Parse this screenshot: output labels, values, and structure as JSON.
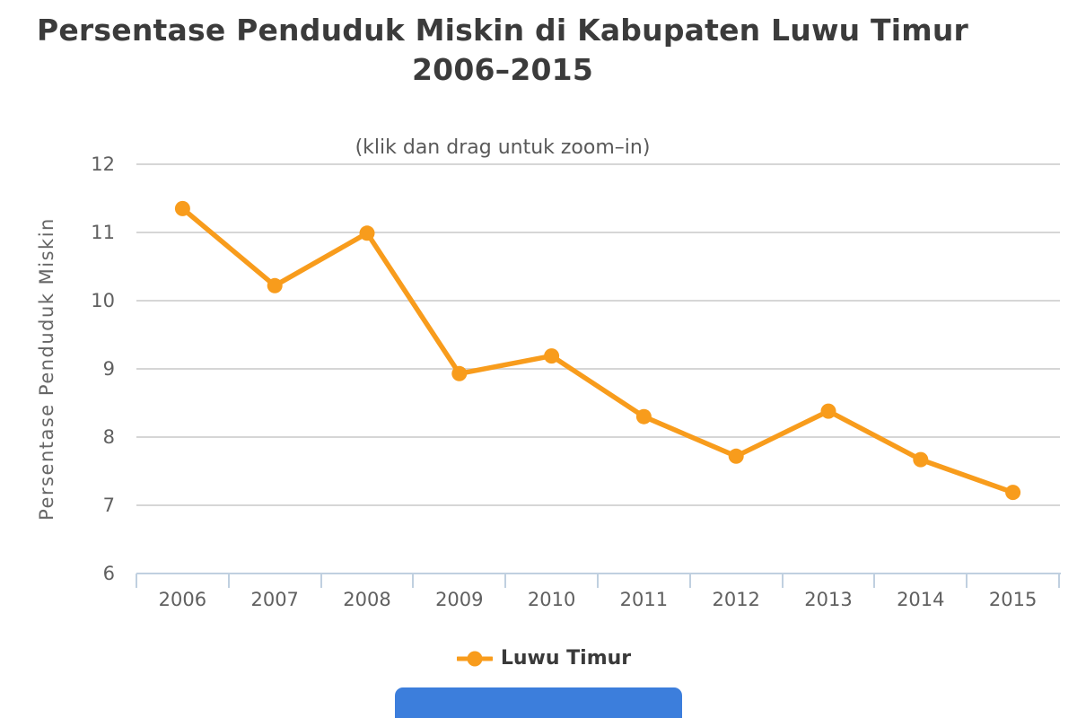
{
  "header": {
    "title_line1": "Persentase Penduduk Miskin di Kabupaten Luwu Timur",
    "title_line2": "2006–2015",
    "subtitle": "(klik dan drag untuk zoom–in)"
  },
  "y_axis": {
    "title": "Persentase Penduduk Miskin",
    "ticks": [
      12,
      11,
      10,
      9,
      8,
      7,
      6
    ],
    "min": 6,
    "max": 12
  },
  "x_axis": {
    "categories": [
      "2006",
      "2007",
      "2008",
      "2009",
      "2010",
      "2011",
      "2012",
      "2013",
      "2014",
      "2015"
    ]
  },
  "legend": {
    "label": "Luwu Timur"
  },
  "colors": {
    "series": "#F89C1C",
    "grid": "#D6D6D6",
    "axis_line": "#C0D0E0",
    "title_text": "#3B3B3B",
    "subtitle_text": "#595959",
    "axis_text": "#606060",
    "legend_text": "#3A3A3A",
    "scrollbar": "#3C7EDC"
  },
  "chart_data": {
    "type": "line",
    "title": "Persentase Penduduk Miskin di Kabupaten Luwu Timur 2006–2015",
    "subtitle": "(klik dan drag untuk zoom–in)",
    "categories": [
      "2006",
      "2007",
      "2008",
      "2009",
      "2010",
      "2011",
      "2012",
      "2013",
      "2014",
      "2015"
    ],
    "series": [
      {
        "name": "Luwu Timur",
        "values": [
          11.35,
          10.22,
          10.99,
          8.93,
          9.19,
          8.3,
          7.72,
          8.38,
          7.67,
          7.19
        ]
      }
    ],
    "xlabel": "",
    "ylabel": "Persentase Penduduk Miskin",
    "ylim": [
      6,
      12
    ],
    "grid": true,
    "legend_position": "bottom",
    "marker": "circle"
  }
}
